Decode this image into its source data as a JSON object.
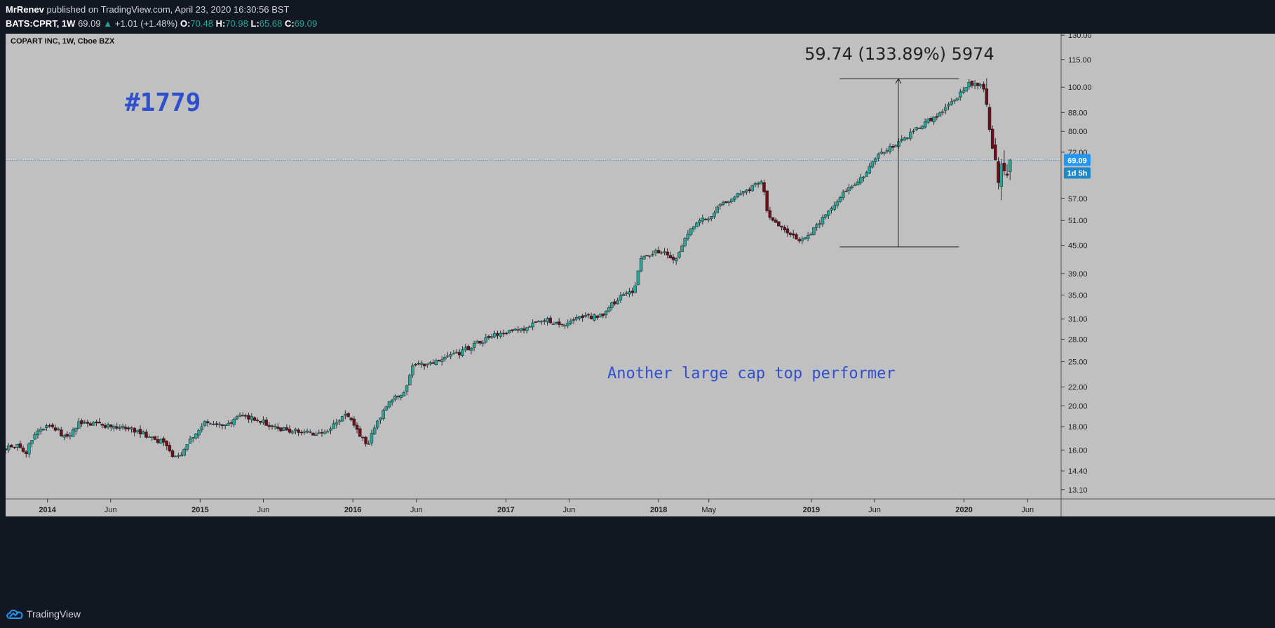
{
  "header": {
    "author": "MrRenev",
    "published_text": "published on TradingView.com, April 23, 2020 16:30:56 BST",
    "symbol": "BATS:CPRT, 1W",
    "last": "69.09",
    "change": "+1.01 (+1.48%)",
    "o_label": "O:",
    "o_value": "70.48",
    "h_label": "H:",
    "h_value": "70.98",
    "l_label": "L:",
    "l_value": "65.68",
    "c_label": "C:",
    "c_value": "69.09"
  },
  "footer": {
    "brand": "TradingView"
  },
  "chart_data": {
    "type": "candlestick",
    "title": "COPART INC, 1W, Cboe BZX",
    "scale": "log",
    "ylim": [
      12.5,
      131
    ],
    "y_ticks": [
      "130.00",
      "115.00",
      "100.00",
      "88.00",
      "80.00",
      "72.00",
      "57.00",
      "51.00",
      "45.00",
      "39.00",
      "35.00",
      "31.00",
      "28.00",
      "25.00",
      "22.00",
      "20.00",
      "18.00",
      "16.00",
      "14.40",
      "13.10"
    ],
    "x_ticks": [
      "2014",
      "Jun",
      "2015",
      "Jun",
      "2016",
      "Jun",
      "2017",
      "Jun",
      "2018",
      "May",
      "2019",
      "Jun",
      "2020",
      "Jun"
    ],
    "x_range": [
      "2013-09-23",
      "2020-08-20"
    ],
    "last_price_label": "69.09",
    "countdown_label": "1d 5h",
    "last_price": 69.09,
    "annotations": {
      "big_label": "#1779",
      "subtitle": "Another large cap top performer",
      "measure_label": "59.74 (133.89%) 5974",
      "measure_low": 44.62,
      "measure_high": 104.36,
      "measure_from": "2019-03-10",
      "measure_to": "2019-12-20",
      "arrow_at": "2019-07-28"
    },
    "colors": {
      "background": "#c0c0c0",
      "up": "#26a69a",
      "down": "#6b0f1a",
      "wick": "#2a2e39",
      "accent": "#2962ff",
      "annotation": "#2f4fcf"
    },
    "series_points": [
      [
        "2013-09-23",
        16.2
      ],
      [
        "2013-10-20",
        16.3
      ],
      [
        "2013-11-10",
        15.8
      ],
      [
        "2013-12-10",
        17.9
      ],
      [
        "2014-01-10",
        18.2
      ],
      [
        "2014-02-15",
        17.0
      ],
      [
        "2014-03-15",
        18.3
      ],
      [
        "2014-05-01",
        18.2
      ],
      [
        "2014-06-15",
        18.0
      ],
      [
        "2014-08-01",
        17.6
      ],
      [
        "2014-09-15",
        16.9
      ],
      [
        "2014-10-10",
        16.6
      ],
      [
        "2014-11-01",
        15.4
      ],
      [
        "2014-11-20",
        15.8
      ],
      [
        "2014-12-15",
        17.2
      ],
      [
        "2015-01-15",
        18.6
      ],
      [
        "2015-03-01",
        18.1
      ],
      [
        "2015-04-01",
        19.0
      ],
      [
        "2015-05-20",
        18.7
      ],
      [
        "2015-07-01",
        17.8
      ],
      [
        "2015-08-15",
        17.6
      ],
      [
        "2015-10-10",
        17.4
      ],
      [
        "2015-11-15",
        18.0
      ],
      [
        "2015-12-15",
        19.4
      ],
      [
        "2016-01-10",
        17.6
      ],
      [
        "2016-02-05",
        16.4
      ],
      [
        "2016-03-01",
        18.5
      ],
      [
        "2016-04-01",
        20.6
      ],
      [
        "2016-05-05",
        21.7
      ],
      [
        "2016-05-20",
        24.3
      ],
      [
        "2016-07-15",
        25.1
      ],
      [
        "2016-09-01",
        25.8
      ],
      [
        "2016-10-15",
        27.2
      ],
      [
        "2016-12-15",
        28.8
      ],
      [
        "2017-02-15",
        29.6
      ],
      [
        "2017-04-01",
        31.0
      ],
      [
        "2017-05-10",
        30.0
      ],
      [
        "2017-06-15",
        31.2
      ],
      [
        "2017-08-15",
        31.5
      ],
      [
        "2017-10-01",
        34.8
      ],
      [
        "2017-11-05",
        36.0
      ],
      [
        "2017-11-20",
        42.5
      ],
      [
        "2018-01-05",
        43.8
      ],
      [
        "2018-02-10",
        41.5
      ],
      [
        "2018-03-20",
        49.5
      ],
      [
        "2018-05-01",
        52.0
      ],
      [
        "2018-06-15",
        56.5
      ],
      [
        "2018-08-01",
        59.5
      ],
      [
        "2018-09-05",
        62.5
      ],
      [
        "2018-09-20",
        51.5
      ],
      [
        "2018-11-01",
        48.0
      ],
      [
        "2018-12-15",
        46.0
      ],
      [
        "2019-02-01",
        52.0
      ],
      [
        "2019-03-15",
        58.5
      ],
      [
        "2019-05-01",
        63.0
      ],
      [
        "2019-06-15",
        72.0
      ],
      [
        "2019-08-01",
        75.5
      ],
      [
        "2019-09-15",
        81.5
      ],
      [
        "2019-11-01",
        87.0
      ],
      [
        "2019-12-15",
        95.0
      ],
      [
        "2020-01-15",
        102.5
      ],
      [
        "2020-02-15",
        100.0
      ],
      [
        "2020-02-28",
        88.0
      ],
      [
        "2020-03-10",
        75.0
      ],
      [
        "2020-03-20",
        61.0
      ],
      [
        "2020-04-01",
        70.0
      ],
      [
        "2020-04-10",
        66.0
      ],
      [
        "2020-04-23",
        69.09
      ]
    ]
  }
}
